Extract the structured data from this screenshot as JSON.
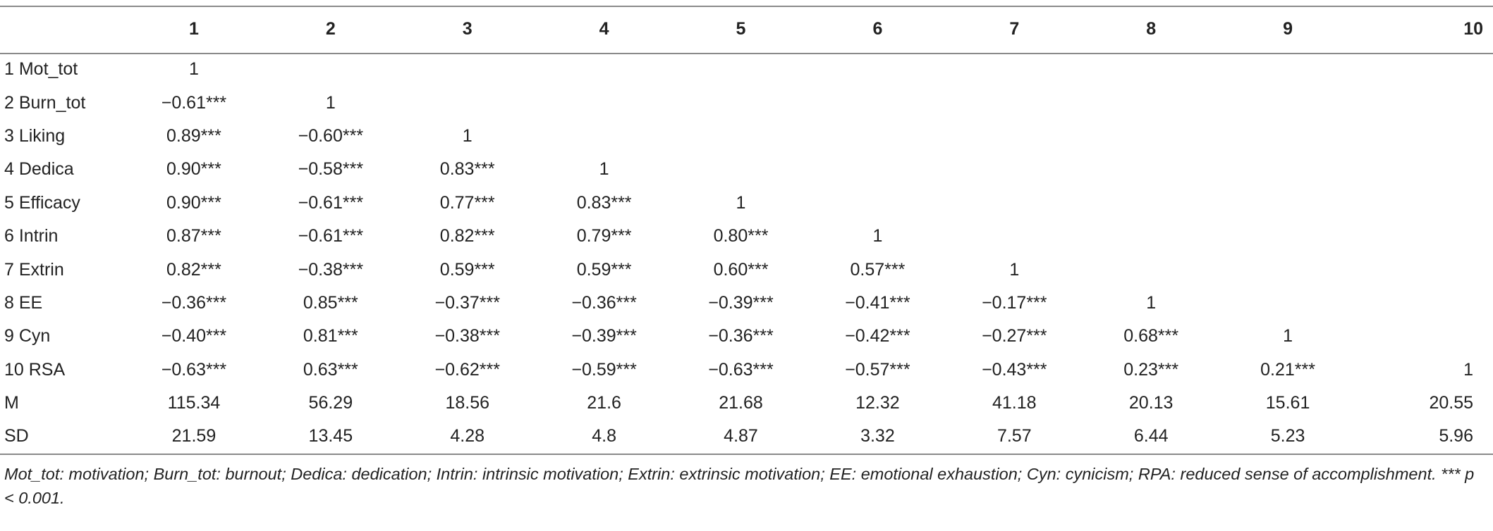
{
  "table": {
    "corner": "",
    "columns": [
      "1",
      "2",
      "3",
      "4",
      "5",
      "6",
      "7",
      "8",
      "9",
      "10"
    ],
    "rows": [
      {
        "label": "1 Mot_tot",
        "cells": [
          "1",
          "",
          "",
          "",
          "",
          "",
          "",
          "",
          "",
          ""
        ]
      },
      {
        "label": "2 Burn_tot",
        "cells": [
          "−0.61***",
          "1",
          "",
          "",
          "",
          "",
          "",
          "",
          "",
          ""
        ]
      },
      {
        "label": "3 Liking",
        "cells": [
          "0.89***",
          "−0.60***",
          "1",
          "",
          "",
          "",
          "",
          "",
          "",
          ""
        ]
      },
      {
        "label": "4 Dedica",
        "cells": [
          "0.90***",
          "−0.58***",
          "0.83***",
          "1",
          "",
          "",
          "",
          "",
          "",
          ""
        ]
      },
      {
        "label": "5 Efficacy",
        "cells": [
          "0.90***",
          "−0.61***",
          "0.77***",
          "0.83***",
          "1",
          "",
          "",
          "",
          "",
          ""
        ]
      },
      {
        "label": "6 Intrin",
        "cells": [
          "0.87***",
          "−0.61***",
          "0.82***",
          "0.79***",
          "0.80***",
          "1",
          "",
          "",
          "",
          ""
        ]
      },
      {
        "label": "7 Extrin",
        "cells": [
          "0.82***",
          "−0.38***",
          "0.59***",
          "0.59***",
          "0.60***",
          "0.57***",
          "1",
          "",
          "",
          ""
        ]
      },
      {
        "label": "8 EE",
        "cells": [
          "−0.36***",
          "0.85***",
          "−0.37***",
          "−0.36***",
          "−0.39***",
          "−0.41***",
          "−0.17***",
          "1",
          "",
          ""
        ]
      },
      {
        "label": "9 Cyn",
        "cells": [
          "−0.40***",
          "0.81***",
          "−0.38***",
          "−0.39***",
          "−0.36***",
          "−0.42***",
          "−0.27***",
          "0.68***",
          "1",
          ""
        ]
      },
      {
        "label": "10 RSA",
        "cells": [
          "−0.63***",
          "0.63***",
          "−0.62***",
          "−0.59***",
          "−0.63***",
          "−0.57***",
          "−0.43***",
          "0.23***",
          "0.21***",
          "1"
        ]
      },
      {
        "label": "M",
        "cells": [
          "115.34",
          "56.29",
          "18.56",
          "21.6",
          "21.68",
          "12.32",
          "41.18",
          "20.13",
          "15.61",
          "20.55"
        ]
      },
      {
        "label": "SD",
        "cells": [
          "21.59",
          "13.45",
          "4.28",
          "4.8",
          "4.87",
          "3.32",
          "7.57",
          "6.44",
          "5.23",
          "5.96"
        ]
      }
    ]
  },
  "footnote": "Mot_tot: motivation; Burn_tot: burnout; Dedica: dedication; Intrin: intrinsic motivation; Extrin: extrinsic motivation; EE: emotional exhaustion; Cyn: cynicism; RPA: reduced sense of accomplishment. *** p < 0.001."
}
